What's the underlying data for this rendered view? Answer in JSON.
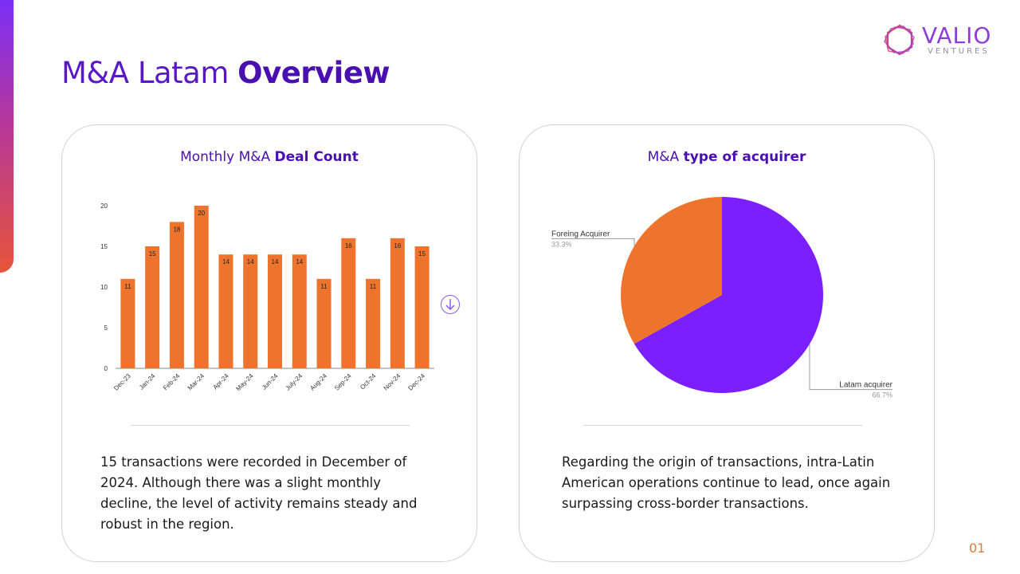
{
  "header": {
    "title_regular": "M&A Latam",
    "title_bold": "Overview"
  },
  "logo": {
    "wordmark": "VALIO",
    "tagline": "VENTURES",
    "icon": "hexagon-logo-icon"
  },
  "colors": {
    "accent_purple": "#7b1fff",
    "accent_orange": "#ee742d",
    "title_purple": "#4a0fb0"
  },
  "left_card": {
    "title_regular": "Monthly M&A",
    "title_bold": "Deal Count",
    "description": "15 transactions were recorded in December of 2024. Although there was a slight monthly decline, the level of activity remains steady and robust in the region."
  },
  "right_card": {
    "title_regular": "M&A",
    "title_bold": "type of acquirer",
    "description": "Regarding the origin of transactions, intra-Latin American operations continue to lead, once again surpassing cross-border transactions."
  },
  "scroll_button": {
    "icon": "arrow-down-circle-icon"
  },
  "page_number": "01",
  "chart_data": [
    {
      "type": "bar",
      "title": "Monthly M&A Deal Count",
      "categories": [
        "Dec-23",
        "Jan-24",
        "Feb-24",
        "Mar-24",
        "Apr-24",
        "May-24",
        "Jun-24",
        "July-24",
        "Aug-24",
        "Sep-24",
        "Oct-24",
        "Nov-24",
        "Dec-24"
      ],
      "values": [
        11,
        15,
        18,
        20,
        14,
        14,
        14,
        14,
        11,
        16,
        11,
        16,
        15
      ],
      "ylim": [
        0,
        20
      ],
      "yticks": [
        0,
        5,
        10,
        15,
        20
      ],
      "data_labels": true,
      "grid": false,
      "color": "#ee742d"
    },
    {
      "type": "pie",
      "title": "M&A type of acquirer",
      "slices": [
        {
          "label": "Latam acquirer",
          "value": 66.7,
          "pct_label": "66.7%",
          "color": "#7b1fff"
        },
        {
          "label": "Foreing Acquirer",
          "value": 33.3,
          "pct_label": "33.3%",
          "color": "#ee742d"
        }
      ]
    }
  ]
}
